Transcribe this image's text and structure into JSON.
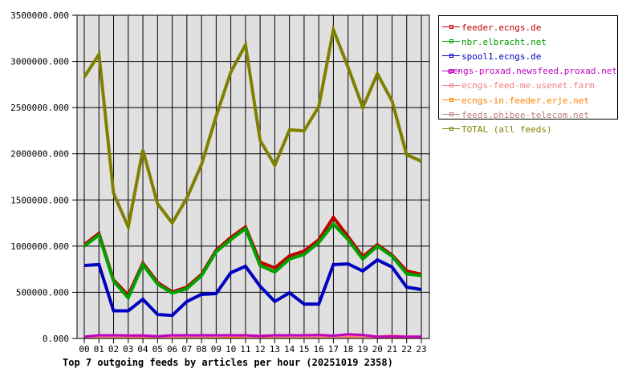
{
  "chart_data": {
    "type": "line",
    "title": "Top 7 outgoing feeds by articles per hour (20251019 2358)",
    "xlabel": "",
    "ylabel": "",
    "ylim": [
      0,
      3500000
    ],
    "yticks": [
      "0.000",
      "500000.000",
      "1000000.000",
      "1500000.000",
      "2000000.000",
      "2500000.000",
      "3000000.000",
      "3500000.000"
    ],
    "x": [
      "00",
      "01",
      "02",
      "03",
      "04",
      "05",
      "06",
      "07",
      "08",
      "09",
      "10",
      "11",
      "12",
      "13",
      "14",
      "15",
      "16",
      "17",
      "18",
      "19",
      "20",
      "21",
      "22",
      "23"
    ],
    "grid": true,
    "legend_position": "right-top",
    "series": [
      {
        "name": "feeder.ecngs.de",
        "color": "#c00000",
        "values": [
          1016000,
          1138000,
          634000,
          469000,
          816000,
          608000,
          504000,
          556000,
          695000,
          955000,
          1094000,
          1207000,
          825000,
          764000,
          895000,
          947000,
          1068000,
          1311000,
          1103000,
          886000,
          1016000,
          903000,
          730000,
          695000
        ]
      },
      {
        "name": "nbr.elbracht.net",
        "color": "#00a000",
        "values": [
          1000000,
          1120000,
          620000,
          440000,
          800000,
          590000,
          490000,
          540000,
          680000,
          940000,
          1070000,
          1190000,
          790000,
          720000,
          860000,
          910000,
          1040000,
          1240000,
          1070000,
          860000,
          1000000,
          890000,
          700000,
          680000
        ]
      },
      {
        "name": "spool1.ecngs.de",
        "color": "#0000c0",
        "values": [
          790000,
          800000,
          300000,
          300000,
          425000,
          260000,
          250000,
          400000,
          478000,
          486000,
          712000,
          782000,
          565000,
          400000,
          495000,
          373000,
          373000,
          800000,
          808000,
          730000,
          851000,
          773000,
          556000,
          530000
        ]
      },
      {
        "name": "ecngs-proxad.newsfeed.proxad.net",
        "color": "#c000c0",
        "values": [
          20000,
          35000,
          35000,
          32000,
          32000,
          24000,
          35000,
          35000,
          35000,
          35000,
          35000,
          35000,
          27000,
          35000,
          35000,
          35000,
          38000,
          30000,
          45000,
          38000,
          20000,
          22000,
          20000,
          20000
        ]
      },
      {
        "name": "ecngs-feed-me.usenet.farm",
        "color": "#f08080",
        "values": [
          20000,
          20000,
          20000,
          20000,
          20000,
          20000,
          20000,
          20000,
          20000,
          20000,
          30000,
          20000,
          20000,
          20000,
          20000,
          20000,
          20000,
          20000,
          20000,
          20000,
          20000,
          32000,
          20000,
          20000
        ]
      },
      {
        "name": "ecngs-in.feeder.erje.net",
        "color": "#ff8000",
        "values": [
          10000,
          10000,
          10000,
          10000,
          10000,
          10000,
          10000,
          10000,
          10000,
          10000,
          10000,
          10000,
          10000,
          10000,
          10000,
          10000,
          10000,
          10000,
          10000,
          10000,
          10000,
          10000,
          10000,
          10000
        ]
      },
      {
        "name": "feeds.phibee-telecom.net",
        "color": "#c08080",
        "values": [
          18000,
          18000,
          18000,
          18000,
          18000,
          18000,
          18000,
          18000,
          18000,
          18000,
          18000,
          18000,
          18000,
          18000,
          18000,
          18000,
          18000,
          18000,
          18000,
          18000,
          18000,
          18000,
          18000,
          18000
        ]
      },
      {
        "name": "TOTAL (all feeds)",
        "color": "#808000",
        "values": [
          2831000,
          3075000,
          1572000,
          1207000,
          2041000,
          1459000,
          1251000,
          1520000,
          1885000,
          2406000,
          2884000,
          3179000,
          2145000,
          1876000,
          2258000,
          2249000,
          2510000,
          3344000,
          2936000,
          2501000,
          2866000,
          2571000,
          1989000,
          1919000
        ]
      }
    ]
  },
  "legend": {
    "items": [
      {
        "label": "feeder.ecngs.de",
        "color": "#c00000"
      },
      {
        "label": "nbr.elbracht.net",
        "color": "#00a000"
      },
      {
        "label": "spool1.ecngs.de",
        "color": "#0000c0"
      },
      {
        "label": "ecngs-proxad.newsfeed.proxad.net",
        "color": "#c000c0"
      },
      {
        "label": "ecngs-feed-me.usenet.farm",
        "color": "#f08080"
      },
      {
        "label": "ecngs-in.feeder.erje.net",
        "color": "#ff8000"
      },
      {
        "label": "feeds.phibee-telecom.net",
        "color": "#c08080"
      },
      {
        "label": "TOTAL (all feeds)",
        "color": "#808000"
      }
    ]
  },
  "colors": {
    "plot_background": "#e0e0e0",
    "grid": "#000000",
    "axis": "#000000"
  }
}
